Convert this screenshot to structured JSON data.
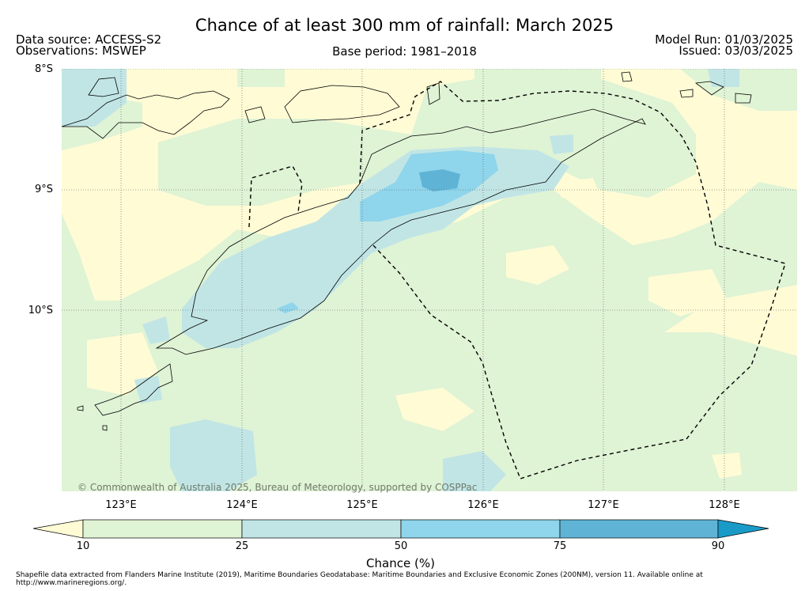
{
  "header": {
    "title": "Chance of at least 300 mm of rainfall: March 2025",
    "data_source": "Data source: ACCESS-S2",
    "observations": "Observations: MSWEP",
    "base_period": "Base period: 1981–2018",
    "model_run": "Model Run: 01/03/2025",
    "issued": "Issued: 03/03/2025"
  },
  "map": {
    "lat_labels": [
      "8°S",
      "9°S",
      "10°S"
    ],
    "lon_labels": [
      "123°E",
      "124°E",
      "125°E",
      "126°E",
      "127°E",
      "128°E"
    ],
    "copyright": "© Commonwealth of Australia 2025, Bureau of Meteorology, supported by COSPPac"
  },
  "colorbar": {
    "label": "Chance (%)",
    "ticks": [
      "10",
      "25",
      "50",
      "75",
      "90"
    ],
    "colors": {
      "below_10": "#fffbd5",
      "10_25": "#dff3d5",
      "25_50": "#c1e5e5",
      "50_75": "#8fd5eb",
      "75_90": "#5fb4d6",
      "above_90": "#1a9bc7"
    }
  },
  "footer": {
    "line1": "Shapefile data extracted from Flanders Marine Institute (2019), Maritime Boundaries Geodatabase: Maritime Boundaries and Exclusive Economic Zones (200NM), version 11. Available online at",
    "line2": "http://www.marineregions.org/."
  }
}
